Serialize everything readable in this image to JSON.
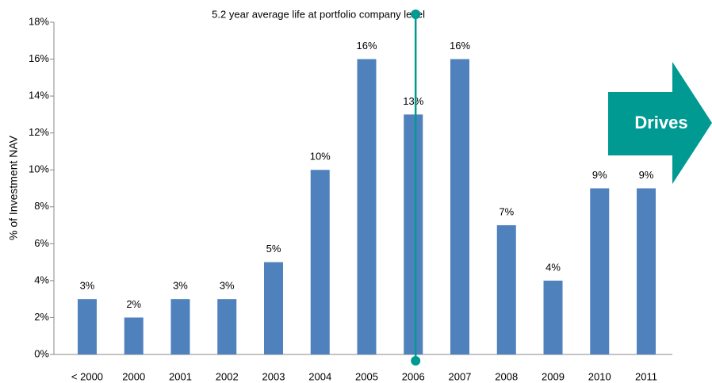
{
  "chart_data": {
    "type": "bar",
    "annotation": "5.2 year average life at portfolio company level",
    "callout": "Drives",
    "ylabel": "% of Investment NAV",
    "categories": [
      "< 2000",
      "2000",
      "2001",
      "2002",
      "2003",
      "2004",
      "2005",
      "2006",
      "2007",
      "2008",
      "2009",
      "2010",
      "2011"
    ],
    "values": [
      3,
      2,
      3,
      3,
      5,
      10,
      16,
      13,
      16,
      7,
      4,
      9,
      9
    ],
    "value_labels": [
      "3%",
      "2%",
      "3%",
      "3%",
      "5%",
      "10%",
      "16%",
      "13%",
      "16%",
      "7%",
      "4%",
      "9%",
      "9%"
    ],
    "color": "#4f81bd",
    "ylim": [
      0,
      18
    ],
    "yticks": [
      {
        "value": 0,
        "label": "0%"
      },
      {
        "value": 2,
        "label": "2%"
      },
      {
        "value": 4,
        "label": "4%"
      },
      {
        "value": 6,
        "label": "6%"
      },
      {
        "value": 8,
        "label": "8%"
      },
      {
        "value": 10,
        "label": "10%"
      },
      {
        "value": 12,
        "label": "12%"
      },
      {
        "value": 14,
        "label": "14%"
      },
      {
        "value": 16,
        "label": "16%"
      },
      {
        "value": 18,
        "label": "18%"
      }
    ],
    "grid": false
  }
}
